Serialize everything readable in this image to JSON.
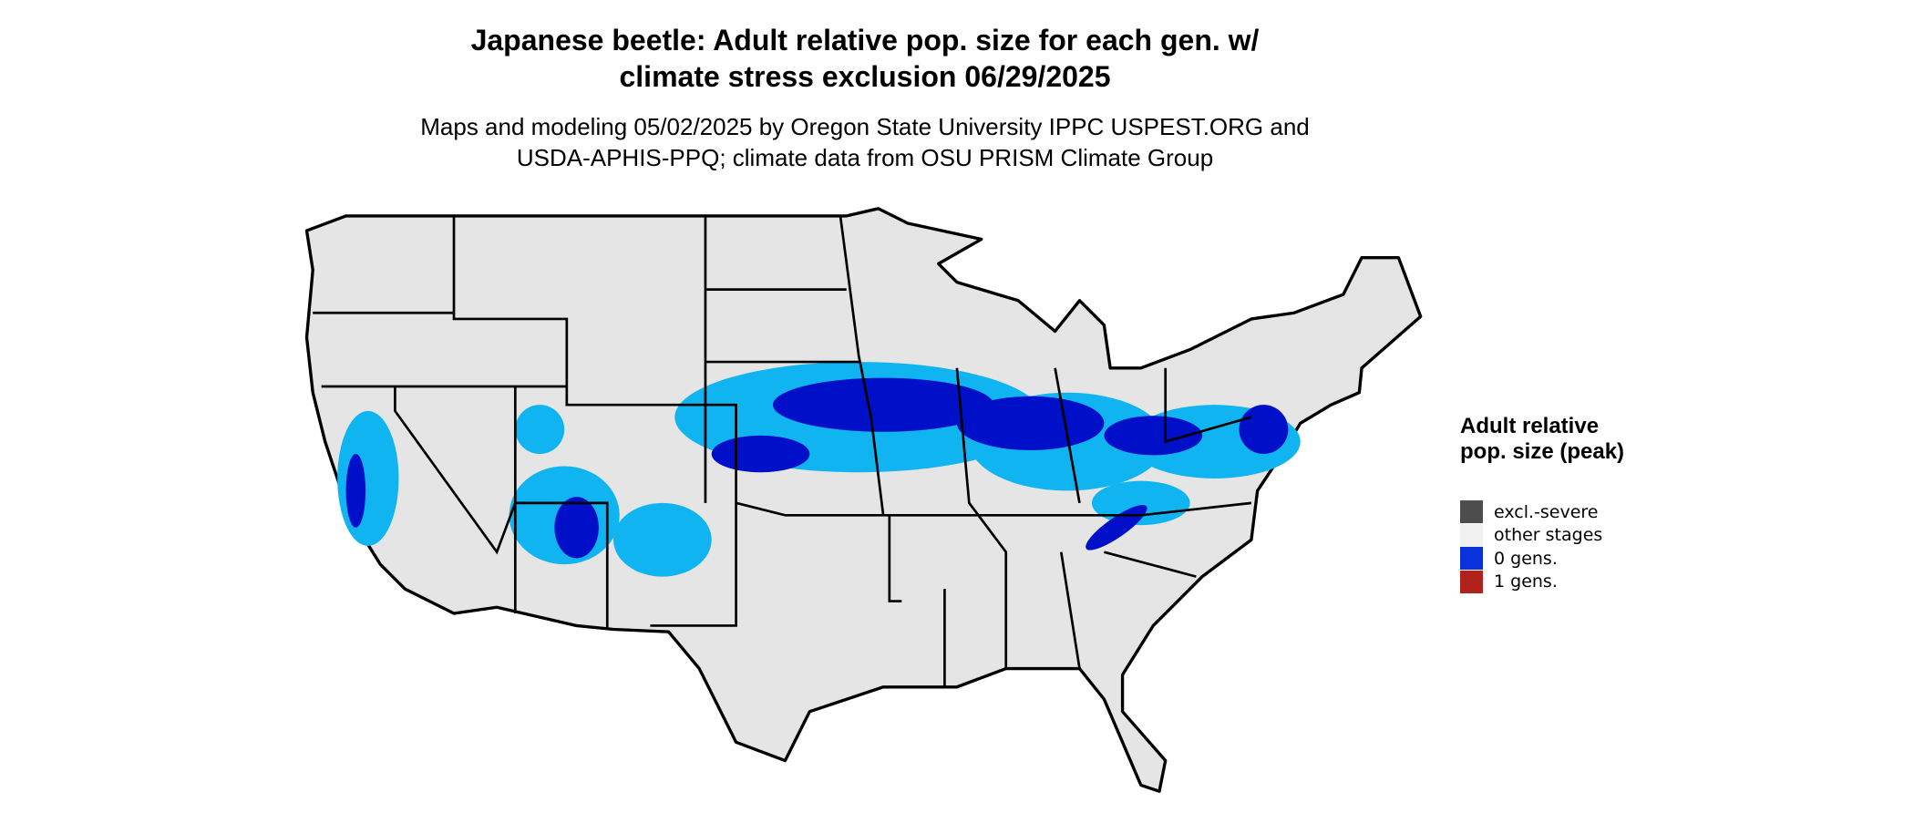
{
  "title": "Japanese beetle: Adult relative pop. size for each gen. w/ climate stress exclusion 06/29/2025",
  "subtitle": "Maps and modeling 05/02/2025 by Oregon State University IPPC USPEST.ORG and USDA-APHIS-PPQ; climate data from OSU PRISM Climate Group",
  "legend": {
    "title": "Adult relative pop. size (peak)",
    "items": [
      {
        "label": "excl.-severe",
        "color": "#4d4d4d"
      },
      {
        "label": "other stages",
        "color": "#f0f0f0"
      },
      {
        "label": "0 gens.",
        "color": "#0a32dc"
      },
      {
        "label": "1 gens.",
        "color": "#b2221c"
      }
    ]
  }
}
